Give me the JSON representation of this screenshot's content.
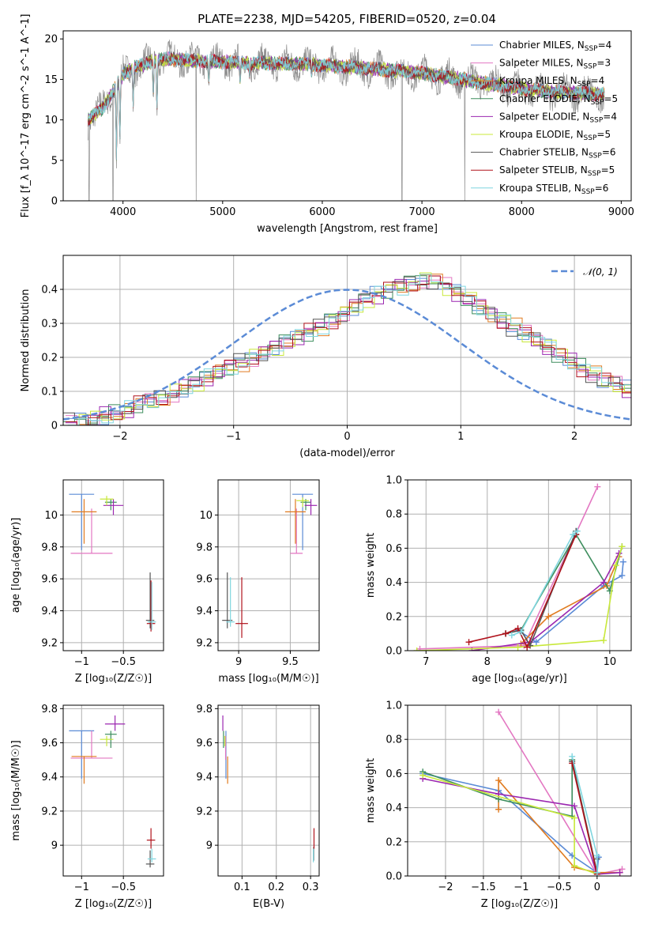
{
  "figure": {
    "title": "PLATE=2238, MJD=54205, FIBERID=0520, z=0.04"
  },
  "colors": {
    "Chabrier MILES": "#5b8bd6",
    "Salpeter MILES": "#e377c2",
    "Kroupa MILES": "#e07b20",
    "Chabrier ELODIE": "#3e8e5e",
    "Salpeter ELODIE": "#9b27b0",
    "Kroupa ELODIE": "#c8e83a",
    "Chabrier STELIB": "#555555",
    "Salpeter STELIB": "#b0121c",
    "Kroupa STELIB": "#7fd6df",
    "gaussian": "#5b8bd6",
    "raw_spectrum": "#8c8c8c"
  },
  "chart_data": [
    {
      "id": "spectrum",
      "type": "line",
      "title": "PLATE=2238, MJD=54205, FIBERID=0520, z=0.04",
      "xlabel": "wavelength [Angstrom, rest frame]",
      "ylabel": "Flux [f_λ 10^-17 erg cm^-2 s^-1 A^-1]",
      "xlim": [
        3400,
        9100
      ],
      "ylim": [
        0,
        21
      ],
      "xticks": [
        4000,
        5000,
        6000,
        7000,
        8000,
        9000
      ],
      "yticks": [
        0,
        5,
        10,
        15,
        20
      ],
      "grid": false,
      "legend_position": "top-right",
      "legend": [
        {
          "name": "Chabrier MILES",
          "label": "Chabrier MILES, N",
          "sub": "SSP",
          "tail": "=4"
        },
        {
          "name": "Salpeter MILES",
          "label": "Salpeter MILES, N",
          "sub": "SSP",
          "tail": "=3"
        },
        {
          "name": "Kroupa MILES",
          "label": "Kroupa MILES, N",
          "sub": "SSP",
          "tail": "=4"
        },
        {
          "name": "Chabrier ELODIE",
          "label": "Chabrier ELODIE, N",
          "sub": "SSP",
          "tail": "=5"
        },
        {
          "name": "Salpeter ELODIE",
          "label": "Salpeter ELODIE, N",
          "sub": "SSP",
          "tail": "=4"
        },
        {
          "name": "Kroupa ELODIE",
          "label": "Kroupa ELODIE, N",
          "sub": "SSP",
          "tail": "=5"
        },
        {
          "name": "Chabrier STELIB",
          "label": "Chabrier STELIB, N",
          "sub": "SSP",
          "tail": "=6"
        },
        {
          "name": "Salpeter STELIB",
          "label": "Salpeter STELIB, N",
          "sub": "SSP",
          "tail": "=5"
        },
        {
          "name": "Kroupa STELIB",
          "label": "Kroupa STELIB, N",
          "sub": "SSP",
          "tail": "=6"
        }
      ],
      "continuum": {
        "x": [
          3650,
          3700,
          3800,
          3900,
          4000,
          4100,
          4200,
          4300,
          4400,
          4500,
          4700,
          4900,
          5100,
          5300,
          5500,
          5800,
          6100,
          6400,
          6700,
          7000,
          7300,
          7600,
          7900,
          8200,
          8500,
          8800
        ],
        "y": [
          10,
          10.5,
          11.5,
          13.5,
          15.5,
          16.5,
          16.8,
          17.2,
          17.5,
          17.5,
          17.3,
          17.2,
          17.1,
          17.0,
          17.0,
          16.9,
          16.7,
          16.4,
          16.1,
          15.8,
          15.2,
          14.6,
          14.0,
          13.6,
          13.3,
          13.2
        ]
      },
      "absorption_features": [
        {
          "x": 3934,
          "y": 4
        },
        {
          "x": 3969,
          "y": 6
        },
        {
          "x": 4102,
          "y": 11
        },
        {
          "x": 4304,
          "y": 12
        },
        {
          "x": 4341,
          "y": 10
        },
        {
          "x": 4861,
          "y": 14
        },
        {
          "x": 5175,
          "y": 14
        },
        {
          "x": 5270,
          "y": 15
        },
        {
          "x": 5892,
          "y": 15
        }
      ],
      "masked_gaps": [
        {
          "x": 3660,
          "y": 0
        },
        {
          "x": 3900,
          "y": 0
        },
        {
          "x": 4735,
          "y": 0
        },
        {
          "x": 6800,
          "y": 0
        },
        {
          "x": 7430,
          "y": 0
        }
      ],
      "spectrum_xmax": 8830
    },
    {
      "id": "residuals",
      "type": "line",
      "xlabel": "(data-model)/error",
      "ylabel": "Normed distribution",
      "xlim": [
        -2.5,
        2.5
      ],
      "ylim": [
        0,
        0.5
      ],
      "xticks": [
        -2,
        -1,
        0,
        1,
        2
      ],
      "yticks": [
        0.0,
        0.1,
        0.2,
        0.3,
        0.4
      ],
      "grid": true,
      "legend_position": "top-right",
      "legend_label": "𝒩(0, 1)",
      "bin_width": 0.1,
      "hist_shape": [
        0.01,
        0.012,
        0.02,
        0.028,
        0.035,
        0.045,
        0.06,
        0.07,
        0.08,
        0.095,
        0.11,
        0.125,
        0.14,
        0.155,
        0.17,
        0.185,
        0.2,
        0.215,
        0.23,
        0.245,
        0.26,
        0.275,
        0.29,
        0.31,
        0.33,
        0.35,
        0.37,
        0.385,
        0.4,
        0.41,
        0.42,
        0.43,
        0.425,
        0.41,
        0.39,
        0.37,
        0.35,
        0.33,
        0.31,
        0.29,
        0.27,
        0.25,
        0.23,
        0.21,
        0.19,
        0.17,
        0.15,
        0.13,
        0.12,
        0.105,
        0.09
      ]
    },
    {
      "id": "age-vs-Z",
      "type": "scatter",
      "xlabel": "Z [log₁₀(Z/Z☉)]",
      "ylabel": "age  [log₁₀(age/yr)]",
      "xlim": [
        -1.22,
        -0.02
      ],
      "ylim": [
        9.15,
        10.22
      ],
      "xticks": [
        -1.0,
        -0.5
      ],
      "yticks": [
        9.2,
        9.4,
        9.6,
        9.8,
        10.0
      ],
      "grid": true,
      "points": [
        {
          "series": "Chabrier MILES",
          "x": -1.0,
          "y": 10.13,
          "xerr": 0.15,
          "yerr_lo": 0.35,
          "yerr_hi": 0.0
        },
        {
          "series": "Salpeter MILES",
          "x": -0.88,
          "y": 9.76,
          "xerr": 0.25,
          "yerr_lo": 0.0,
          "yerr_hi": 0.28
        },
        {
          "series": "Kroupa MILES",
          "x": -0.97,
          "y": 10.02,
          "xerr": 0.15,
          "yerr_lo": 0.2,
          "yerr_hi": 0.08
        },
        {
          "series": "Chabrier ELODIE",
          "x": -0.65,
          "y": 10.08,
          "xerr": 0.07,
          "yerr_lo": 0.05,
          "yerr_hi": 0.02
        },
        {
          "series": "Salpeter ELODIE",
          "x": -0.62,
          "y": 10.06,
          "xerr": 0.12,
          "yerr_lo": 0.06,
          "yerr_hi": 0.04
        },
        {
          "series": "Kroupa ELODIE",
          "x": -0.7,
          "y": 10.1,
          "xerr": 0.08,
          "yerr_lo": 0.04,
          "yerr_hi": 0.02
        },
        {
          "series": "Chabrier STELIB",
          "x": -0.18,
          "y": 9.34,
          "xerr": 0.05,
          "yerr_lo": 0.05,
          "yerr_hi": 0.3
        },
        {
          "series": "Salpeter STELIB",
          "x": -0.17,
          "y": 9.32,
          "xerr": 0.05,
          "yerr_lo": 0.05,
          "yerr_hi": 0.27
        },
        {
          "series": "Kroupa STELIB",
          "x": -0.16,
          "y": 9.33,
          "xerr": 0.05,
          "yerr_lo": 0.05,
          "yerr_hi": 0.25
        }
      ]
    },
    {
      "id": "age-vs-mass",
      "type": "scatter",
      "xlabel": "mass [log₁₀(M/M☉)]",
      "ylabel": "",
      "xlim": [
        8.8,
        9.78
      ],
      "ylim": [
        9.15,
        10.22
      ],
      "xticks": [
        9.0,
        9.5
      ],
      "yticks": [
        9.2,
        9.4,
        9.6,
        9.8,
        10.0
      ],
      "grid": true,
      "points": [
        {
          "series": "Chabrier MILES",
          "x": 9.62,
          "y": 10.13,
          "xerr": 0.1,
          "yerr_lo": 0.35,
          "yerr_hi": 0.0
        },
        {
          "series": "Salpeter MILES",
          "x": 9.56,
          "y": 9.76,
          "xerr": 0.06,
          "yerr_lo": 0.0,
          "yerr_hi": 0.28
        },
        {
          "series": "Kroupa MILES",
          "x": 9.55,
          "y": 10.02,
          "xerr": 0.1,
          "yerr_lo": 0.2,
          "yerr_hi": 0.08
        },
        {
          "series": "Chabrier ELODIE",
          "x": 9.65,
          "y": 10.08,
          "xerr": 0.05,
          "yerr_lo": 0.05,
          "yerr_hi": 0.02
        },
        {
          "series": "Salpeter ELODIE",
          "x": 9.7,
          "y": 10.06,
          "xerr": 0.06,
          "yerr_lo": 0.06,
          "yerr_hi": 0.04
        },
        {
          "series": "Kroupa ELODIE",
          "x": 9.62,
          "y": 10.09,
          "xerr": 0.06,
          "yerr_lo": 0.04,
          "yerr_hi": 0.02
        },
        {
          "series": "Chabrier STELIB",
          "x": 8.89,
          "y": 9.34,
          "xerr": 0.05,
          "yerr_lo": 0.05,
          "yerr_hi": 0.3
        },
        {
          "series": "Salpeter STELIB",
          "x": 9.03,
          "y": 9.32,
          "xerr": 0.06,
          "yerr_lo": 0.09,
          "yerr_hi": 0.29
        },
        {
          "series": "Kroupa STELIB",
          "x": 8.92,
          "y": 9.33,
          "xerr": 0.04,
          "yerr_lo": 0.03,
          "yerr_hi": 0.28
        }
      ]
    },
    {
      "id": "weight-vs-age",
      "type": "line",
      "xlabel": "age  [log₁₀(age/yr)]",
      "ylabel": "mass weight",
      "xlim": [
        6.7,
        10.35
      ],
      "ylim": [
        0,
        1.0
      ],
      "xticks": [
        7,
        8,
        9,
        10
      ],
      "yticks": [
        0.0,
        0.2,
        0.4,
        0.6,
        0.8,
        1.0
      ],
      "grid": true,
      "series": [
        {
          "name": "Chabrier MILES",
          "x": [
            8.5,
            8.8,
            9.9,
            10.2,
            10.22
          ],
          "y": [
            0.12,
            0.05,
            0.38,
            0.44,
            0.52
          ]
        },
        {
          "name": "Salpeter MILES",
          "x": [
            6.9,
            8.6,
            9.8
          ],
          "y": [
            0.01,
            0.03,
            0.96
          ]
        },
        {
          "name": "Kroupa MILES",
          "x": [
            8.55,
            9.0,
            9.95,
            10.15
          ],
          "y": [
            0.04,
            0.2,
            0.38,
            0.55
          ]
        },
        {
          "name": "Chabrier ELODIE",
          "x": [
            8.3,
            8.55,
            9.45,
            10.0,
            10.2
          ],
          "y": [
            0.1,
            0.12,
            0.68,
            0.35,
            0.61
          ]
        },
        {
          "name": "Salpeter ELODIE",
          "x": [
            7.75,
            8.7,
            9.9,
            10.15
          ],
          "y": [
            0.0,
            0.05,
            0.4,
            0.57
          ]
        },
        {
          "name": "Kroupa ELODIE",
          "x": [
            6.85,
            8.5,
            9.9,
            10.1,
            10.2
          ],
          "y": [
            0.0,
            0.02,
            0.06,
            0.5,
            0.61
          ]
        },
        {
          "name": "Chabrier STELIB",
          "x": [
            8.3,
            8.55,
            8.7,
            9.45
          ],
          "y": [
            0.1,
            0.12,
            0.03,
            0.7
          ]
        },
        {
          "name": "Salpeter STELIB",
          "x": [
            7.7,
            8.3,
            8.5,
            8.65,
            9.45
          ],
          "y": [
            0.05,
            0.1,
            0.13,
            0.02,
            0.68
          ]
        },
        {
          "name": "Kroupa STELIB",
          "x": [
            8.4,
            8.55,
            9.4,
            9.47
          ],
          "y": [
            0.09,
            0.11,
            0.68,
            0.7
          ]
        }
      ]
    },
    {
      "id": "mass-vs-Z",
      "type": "scatter",
      "xlabel": "Z [log₁₀(Z/Z☉)]",
      "ylabel": "mass [log₁₀(M/M☉)]",
      "xlim": [
        -1.22,
        -0.02
      ],
      "ylim": [
        8.82,
        9.82
      ],
      "xticks": [
        -1.0,
        -0.5
      ],
      "yticks": [
        9.0,
        9.2,
        9.4,
        9.6,
        9.8
      ],
      "grid": true,
      "points": [
        {
          "series": "Chabrier MILES",
          "x": -1.0,
          "y": 9.67,
          "xerr": 0.15,
          "yerr_lo": 0.28,
          "yerr_hi": 0.0
        },
        {
          "series": "Salpeter MILES",
          "x": -0.88,
          "y": 9.51,
          "xerr": 0.25,
          "yerr_lo": 0.0,
          "yerr_hi": 0.16
        },
        {
          "series": "Kroupa MILES",
          "x": -0.97,
          "y": 9.52,
          "xerr": 0.15,
          "yerr_lo": 0.16,
          "yerr_hi": 0.0
        },
        {
          "series": "Chabrier ELODIE",
          "x": -0.65,
          "y": 9.65,
          "xerr": 0.07,
          "yerr_lo": 0.08,
          "yerr_hi": 0.02
        },
        {
          "series": "Salpeter ELODIE",
          "x": -0.6,
          "y": 9.71,
          "xerr": 0.12,
          "yerr_lo": 0.04,
          "yerr_hi": 0.05
        },
        {
          "series": "Kroupa ELODIE",
          "x": -0.7,
          "y": 9.62,
          "xerr": 0.08,
          "yerr_lo": 0.04,
          "yerr_hi": 0.02
        },
        {
          "series": "Chabrier STELIB",
          "x": -0.18,
          "y": 8.89,
          "xerr": 0.05,
          "yerr_lo": 0.02,
          "yerr_hi": 0.08
        },
        {
          "series": "Salpeter STELIB",
          "x": -0.17,
          "y": 9.03,
          "xerr": 0.05,
          "yerr_lo": 0.05,
          "yerr_hi": 0.07
        },
        {
          "series": "Kroupa STELIB",
          "x": -0.16,
          "y": 8.92,
          "xerr": 0.05,
          "yerr_lo": 0.02,
          "yerr_hi": 0.06
        }
      ]
    },
    {
      "id": "mass-vs-ebv",
      "type": "scatter",
      "xlabel": "E(B-V)",
      "ylabel": "",
      "xlim": [
        0.03,
        0.325
      ],
      "ylim": [
        8.82,
        9.82
      ],
      "xticks": [
        0.1,
        0.2,
        0.3
      ],
      "yticks": [
        9.0,
        9.2,
        9.4,
        9.6,
        9.8
      ],
      "grid": true,
      "points": [
        {
          "series": "Chabrier MILES",
          "x": 0.053,
          "y": 9.67,
          "xerr": 0.0,
          "yerr_lo": 0.28,
          "yerr_hi": 0.0
        },
        {
          "series": "Salpeter MILES",
          "x": 0.052,
          "y": 9.6,
          "xerr": 0.0,
          "yerr_lo": 0.1,
          "yerr_hi": 0.04
        },
        {
          "series": "Kroupa MILES",
          "x": 0.058,
          "y": 9.52,
          "xerr": 0.0,
          "yerr_lo": 0.16,
          "yerr_hi": 0.0
        },
        {
          "series": "Chabrier ELODIE",
          "x": 0.046,
          "y": 9.65,
          "xerr": 0.0,
          "yerr_lo": 0.08,
          "yerr_hi": 0.02
        },
        {
          "series": "Salpeter ELODIE",
          "x": 0.044,
          "y": 9.71,
          "xerr": 0.0,
          "yerr_lo": 0.04,
          "yerr_hi": 0.05
        },
        {
          "series": "Kroupa ELODIE",
          "x": 0.05,
          "y": 9.62,
          "xerr": 0.0,
          "yerr_lo": 0.04,
          "yerr_hi": 0.02
        },
        {
          "series": "Chabrier STELIB",
          "x": 0.309,
          "y": 8.93,
          "xerr": 0.0,
          "yerr_lo": 0.02,
          "yerr_hi": 0.06
        },
        {
          "series": "Salpeter STELIB",
          "x": 0.31,
          "y": 9.03,
          "xerr": 0.0,
          "yerr_lo": 0.05,
          "yerr_hi": 0.07
        },
        {
          "series": "Kroupa STELIB",
          "x": 0.308,
          "y": 8.92,
          "xerr": 0.0,
          "yerr_lo": 0.02,
          "yerr_hi": 0.06
        }
      ]
    },
    {
      "id": "weight-vs-Z",
      "type": "line",
      "xlabel": "Z [log₁₀(Z/Z☉)]",
      "ylabel": "mass weight",
      "xlim": [
        -2.5,
        0.45
      ],
      "ylim": [
        0,
        1.0
      ],
      "xticks": [
        -2.0,
        -1.5,
        -1.0,
        -0.5,
        0.0
      ],
      "yticks": [
        0.0,
        0.2,
        0.4,
        0.6,
        0.8,
        1.0
      ],
      "grid": true,
      "series": [
        {
          "name": "Chabrier MILES",
          "x": [
            -2.3,
            -1.3,
            -0.33,
            0.0,
            0.02
          ],
          "y": [
            0.6,
            0.5,
            0.12,
            0.02,
            0.11
          ]
        },
        {
          "name": "Salpeter MILES",
          "x": [
            -1.3,
            0.0,
            0.33
          ],
          "y": [
            0.96,
            0.01,
            0.04
          ]
        },
        {
          "name": "Kroupa MILES",
          "x": [
            -1.3,
            -1.3,
            -0.3,
            0.0,
            0.3
          ],
          "y": [
            0.39,
            0.56,
            0.05,
            0.02,
            0.02
          ]
        },
        {
          "name": "Chabrier ELODIE",
          "x": [
            -2.3,
            -1.3,
            -0.33,
            -0.33,
            0.0
          ],
          "y": [
            0.61,
            0.45,
            0.35,
            0.68,
            0.02
          ]
        },
        {
          "name": "Salpeter ELODIE",
          "x": [
            -2.3,
            -1.3,
            -0.3,
            0.0,
            0.3
          ],
          "y": [
            0.57,
            0.48,
            0.41,
            0.01,
            0.02
          ]
        },
        {
          "name": "Kroupa ELODIE",
          "x": [
            -2.3,
            -0.3,
            -0.3,
            0.0
          ],
          "y": [
            0.59,
            0.34,
            0.06,
            0.01
          ]
        },
        {
          "name": "Chabrier STELIB",
          "x": [
            -0.33,
            0.0,
            0.0
          ],
          "y": [
            0.67,
            0.02,
            0.1
          ]
        },
        {
          "name": "Salpeter STELIB",
          "x": [
            -0.33,
            0.0
          ],
          "y": [
            0.66,
            0.01
          ]
        },
        {
          "name": "Kroupa STELIB",
          "x": [
            -0.33,
            0.0,
            0.0
          ],
          "y": [
            0.7,
            0.12,
            0.02
          ]
        }
      ]
    }
  ]
}
